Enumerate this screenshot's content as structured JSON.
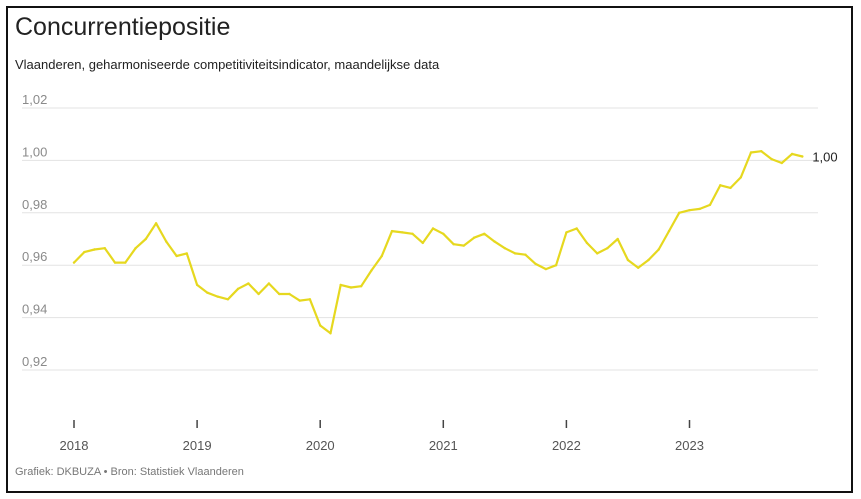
{
  "header": {
    "title": "Concurrentiepositie",
    "subtitle": "Vlaanderen, geharmoniseerde competitiviteitsindicator, maandelijkse data"
  },
  "footer": {
    "credit": "Grafiek: DKBUZA • Bron: Statistiek Vlaanderen"
  },
  "colors": {
    "line": "#e6d81f",
    "grid": "#e3e3e3",
    "axis_text": "#8a8a8a"
  },
  "chart_data": {
    "type": "line",
    "title": "Concurrentiepositie",
    "subtitle": "Vlaanderen, geharmoniseerde competitiviteitsindicator, maandelijkse data",
    "xlabel": "",
    "ylabel": "",
    "ylim": [
      0.92,
      1.02
    ],
    "yticks": [
      0.92,
      0.94,
      0.96,
      0.98,
      1.0,
      1.02
    ],
    "ytick_labels": [
      "0,92",
      "0,94",
      "0,96",
      "0,98",
      "1,00",
      "1,02"
    ],
    "xticks": [
      "2018",
      "2019",
      "2020",
      "2021",
      "2022",
      "2023"
    ],
    "grid": true,
    "end_label": "1,00",
    "series": [
      {
        "name": "",
        "x": [
          "2018-01",
          "2018-02",
          "2018-03",
          "2018-04",
          "2018-05",
          "2018-06",
          "2018-07",
          "2018-08",
          "2018-09",
          "2018-10",
          "2018-11",
          "2018-12",
          "2019-01",
          "2019-02",
          "2019-03",
          "2019-04",
          "2019-05",
          "2019-06",
          "2019-07",
          "2019-08",
          "2019-09",
          "2019-10",
          "2019-11",
          "2019-12",
          "2020-01",
          "2020-02",
          "2020-03",
          "2020-04",
          "2020-05",
          "2020-06",
          "2020-07",
          "2020-08",
          "2020-09",
          "2020-10",
          "2020-11",
          "2020-12",
          "2021-01",
          "2021-02",
          "2021-03",
          "2021-04",
          "2021-05",
          "2021-06",
          "2021-07",
          "2021-08",
          "2021-09",
          "2021-10",
          "2021-11",
          "2021-12",
          "2022-01",
          "2022-02",
          "2022-03",
          "2022-04",
          "2022-05",
          "2022-06",
          "2022-07",
          "2022-08",
          "2022-09",
          "2022-10",
          "2022-11",
          "2022-12",
          "2023-01",
          "2023-02",
          "2023-03",
          "2023-04",
          "2023-05",
          "2023-06",
          "2023-07",
          "2023-08",
          "2023-09",
          "2023-10",
          "2023-11",
          "2023-12"
        ],
        "values": [
          0.961,
          0.965,
          0.966,
          0.9665,
          0.961,
          0.961,
          0.9665,
          0.97,
          0.976,
          0.969,
          0.9635,
          0.9645,
          0.9525,
          0.9495,
          0.948,
          0.947,
          0.951,
          0.953,
          0.949,
          0.953,
          0.949,
          0.949,
          0.9465,
          0.947,
          0.937,
          0.934,
          0.9525,
          0.9515,
          0.952,
          0.958,
          0.9635,
          0.973,
          0.9725,
          0.972,
          0.9685,
          0.974,
          0.972,
          0.968,
          0.9675,
          0.9705,
          0.972,
          0.969,
          0.9665,
          0.9645,
          0.964,
          0.9605,
          0.9585,
          0.96,
          0.9725,
          0.974,
          0.9685,
          0.9645,
          0.9665,
          0.97,
          0.962,
          0.959,
          0.962,
          0.966,
          0.973,
          0.98,
          0.981,
          0.9815,
          0.983,
          0.9905,
          0.9895,
          0.9935,
          1.003,
          1.0035,
          1.0005,
          0.999,
          1.0025,
          1.0015
        ]
      }
    ]
  }
}
